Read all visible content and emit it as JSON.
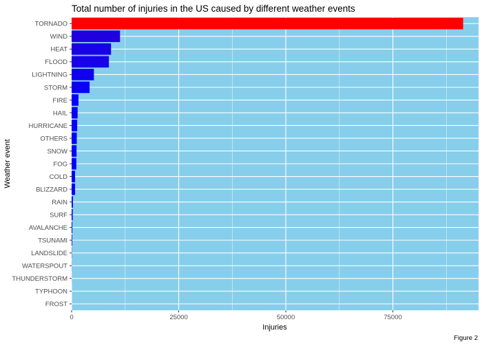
{
  "chart_data": {
    "type": "bar",
    "orientation": "horizontal",
    "title": "Total number of injuries in the US caused by different weather events",
    "xlabel": "Injuries",
    "ylabel": "Weather event",
    "caption": "Figure 2",
    "xlim": [
      0,
      95000
    ],
    "x_ticks": [
      0,
      25000,
      50000,
      75000
    ],
    "grid": true,
    "legend": "none",
    "categories": [
      "TORNADO",
      "WIND",
      "HEAT",
      "FLOOD",
      "LIGHTNING",
      "STORM",
      "FIRE",
      "HAIL",
      "HURRICANE",
      "OTHERS",
      "SNOW",
      "FOG",
      "COLD",
      "BLIZZARD",
      "RAIN",
      "SURF",
      "AVALANCHE",
      "TSUNAMI",
      "LANDSLIDE",
      "WATERSPOUT",
      "THUNDERSTORM",
      "TYPHOON",
      "FROST"
    ],
    "values": [
      91400,
      11300,
      9200,
      8700,
      5200,
      4200,
      1600,
      1400,
      1300,
      1200,
      1150,
      1100,
      800,
      800,
      300,
      250,
      170,
      130,
      50,
      30,
      15,
      5,
      3
    ],
    "colors": {
      "panel_background": "#87ceeb",
      "grid_line": "#ffffff",
      "gradient_low": "#0000ff",
      "gradient_high": "#ff0000"
    }
  }
}
